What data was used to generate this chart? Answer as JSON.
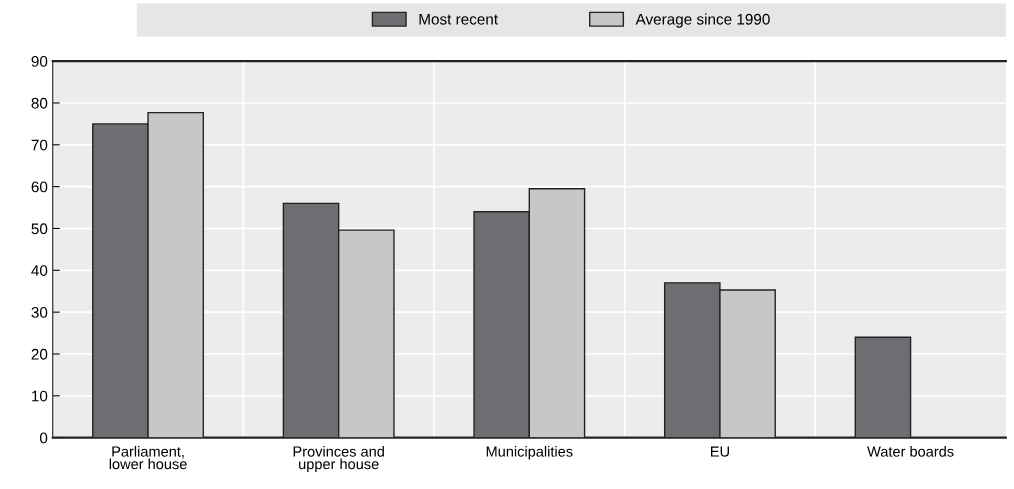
{
  "chart_data": {
    "type": "bar",
    "categories": [
      "Parliament,\nlower house",
      "Provinces and\nupper house",
      "Municipalities",
      "EU",
      "Water boards"
    ],
    "series": [
      {
        "name": "Most recent",
        "color": "#6d6e71",
        "values": [
          75,
          56,
          54,
          37,
          24
        ]
      },
      {
        "name": "Average since 1990",
        "color": "#c6c7c9",
        "values": [
          77.7,
          49.6,
          59.5,
          35.3,
          null
        ]
      }
    ],
    "ylim": [
      0,
      90
    ],
    "yticks": [
      0,
      10,
      20,
      30,
      40,
      50,
      60,
      70,
      80,
      90
    ],
    "grid": true,
    "legend": "top"
  }
}
